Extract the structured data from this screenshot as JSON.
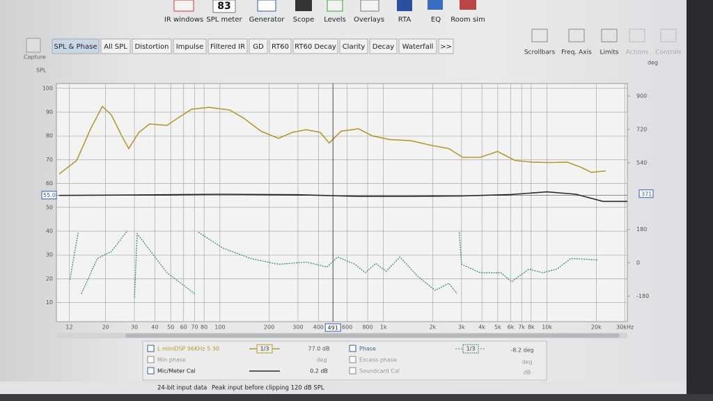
{
  "toolbar": {
    "spl_meter_value": "83",
    "buttons": [
      "IR windows",
      "SPL meter",
      "Generator",
      "Scope",
      "Levels",
      "Overlays",
      "RTA",
      "EQ",
      "Room sim"
    ]
  },
  "capture": "Capture",
  "tabs": [
    "SPL & Phase",
    "All SPL",
    "Distortion",
    "Impulse",
    "Filtered IR",
    "GD",
    "RT60",
    "RT60 Decay",
    "Clarity",
    "Decay",
    "Waterfall",
    ">>"
  ],
  "right_controls": [
    "Scrollbars",
    "Freq. Axis",
    "Limits",
    "Actions",
    "Controls"
  ],
  "chart_data": {
    "type": "line",
    "y_label": "SPL",
    "y2_label": "deg",
    "xscale": "log",
    "xlim": [
      10,
      31000
    ],
    "ylim": [
      2,
      102
    ],
    "y2lim": [
      -318,
      968
    ],
    "grid": true,
    "xticks": [
      12,
      20,
      30,
      40,
      50,
      60,
      70,
      80,
      100,
      200,
      300,
      400,
      600,
      800,
      {
        "value": 1000,
        "label": "1k"
      },
      {
        "value": 2000,
        "label": "2k"
      },
      {
        "value": 3000,
        "label": "3k"
      },
      {
        "value": 4000,
        "label": "4k"
      },
      {
        "value": 5000,
        "label": "5k"
      },
      {
        "value": 6000,
        "label": "6k"
      },
      {
        "value": 7000,
        "label": "7k"
      },
      {
        "value": 8000,
        "label": "8k"
      },
      {
        "value": 10000,
        "label": "10k"
      },
      {
        "value": 20000,
        "label": "20k"
      },
      {
        "value": 30000,
        "label": "30kHz"
      }
    ],
    "yticks": [
      10,
      20,
      30,
      40,
      50,
      60,
      70,
      80,
      90,
      100
    ],
    "y2ticks": [
      -180,
      0,
      180,
      540,
      720,
      900
    ],
    "cursor": {
      "x": {
        "value": 491,
        "label": "491"
      },
      "y": {
        "value": 55.0,
        "label": "55.0"
      },
      "y2": {
        "value": 371,
        "label": "371"
      }
    },
    "series": [
      {
        "name": "L miniDSP 96KHz 5 30",
        "color": "#b39a30",
        "x": [
          10.4,
          13.3,
          16.2,
          19.1,
          21.7,
          25.1,
          27.7,
          32,
          37.2,
          47.5,
          55,
          67,
          85.5,
          115,
          140,
          178,
          228,
          277,
          337,
          410,
          466,
          550,
          703,
          855,
          1090,
          1470,
          1970,
          2510,
          3050,
          3900,
          4990,
          6370,
          8140,
          10400,
          13300,
          16200,
          18700,
          22800
        ],
        "values": [
          64,
          69.7,
          83,
          92.4,
          88.8,
          80,
          74.7,
          81.5,
          85,
          84.4,
          87.4,
          91.2,
          92,
          90.9,
          87.4,
          82,
          79,
          81.5,
          82.6,
          81.5,
          77,
          82,
          83,
          80,
          78.5,
          78,
          76,
          74.7,
          71,
          71,
          73.5,
          69.7,
          69,
          68.8,
          69,
          66.8,
          64.7,
          65.3
        ]
      },
      {
        "name": "Mic/Meter Cal",
        "color": "#2b2b2b",
        "x": [
          10.4,
          30,
          100,
          300,
          700,
          1500,
          3000,
          6000,
          10000,
          15000,
          22000,
          31000
        ],
        "values": [
          55,
          55.2,
          55.5,
          55.3,
          54.6,
          54.6,
          54.8,
          55.4,
          56.5,
          55.5,
          52.5,
          52.5
        ]
      },
      {
        "name": "Phase",
        "color": "#3d8c6c",
        "axis": "y2",
        "x": [
          12.1,
          13.6,
          null,
          14.2,
          17.8,
          21.7,
          27.2,
          null,
          30,
          31.2,
          47.5,
          70.3,
          null,
          73.8,
          104,
          154,
          228,
          337,
          452,
          524,
          670,
          775,
          897,
          1040,
          1260,
          1620,
          2070,
          2510,
          2830,
          null,
          2910,
          3000,
          3900,
          5230,
          6070,
          7750,
          9420,
          11500,
          14000,
          20600
        ],
        "values": [
          -92,
          165,
          null,
          -168,
          23,
          61,
          174,
          null,
          -188,
          157,
          -54,
          -168,
          null,
          165,
          80,
          23,
          -8,
          4,
          -23,
          31,
          -8,
          -54,
          -4,
          -46,
          31,
          -73,
          -149,
          -111,
          -168,
          null,
          165,
          -8,
          -54,
          -54,
          -103,
          -34,
          -54,
          -34,
          23,
          15
        ]
      }
    ]
  },
  "legend": {
    "smoothing": "1/3",
    "smoothing_phase": "1/3",
    "spl_reading": "77.0 dB",
    "phase_reading": "-8.2 deg",
    "min_phase": "Min phase",
    "min_phase_unit": "deg",
    "excess_phase": "Excess phase",
    "excess_phase_unit": "deg",
    "cal_reading": "0.2 dB",
    "soundcard_cal": "Soundcard Cal",
    "soundcard_unit": "dB"
  },
  "status": {
    "input": "24-bit input data",
    "peak": "Peak input before clipping 120 dB SPL"
  }
}
